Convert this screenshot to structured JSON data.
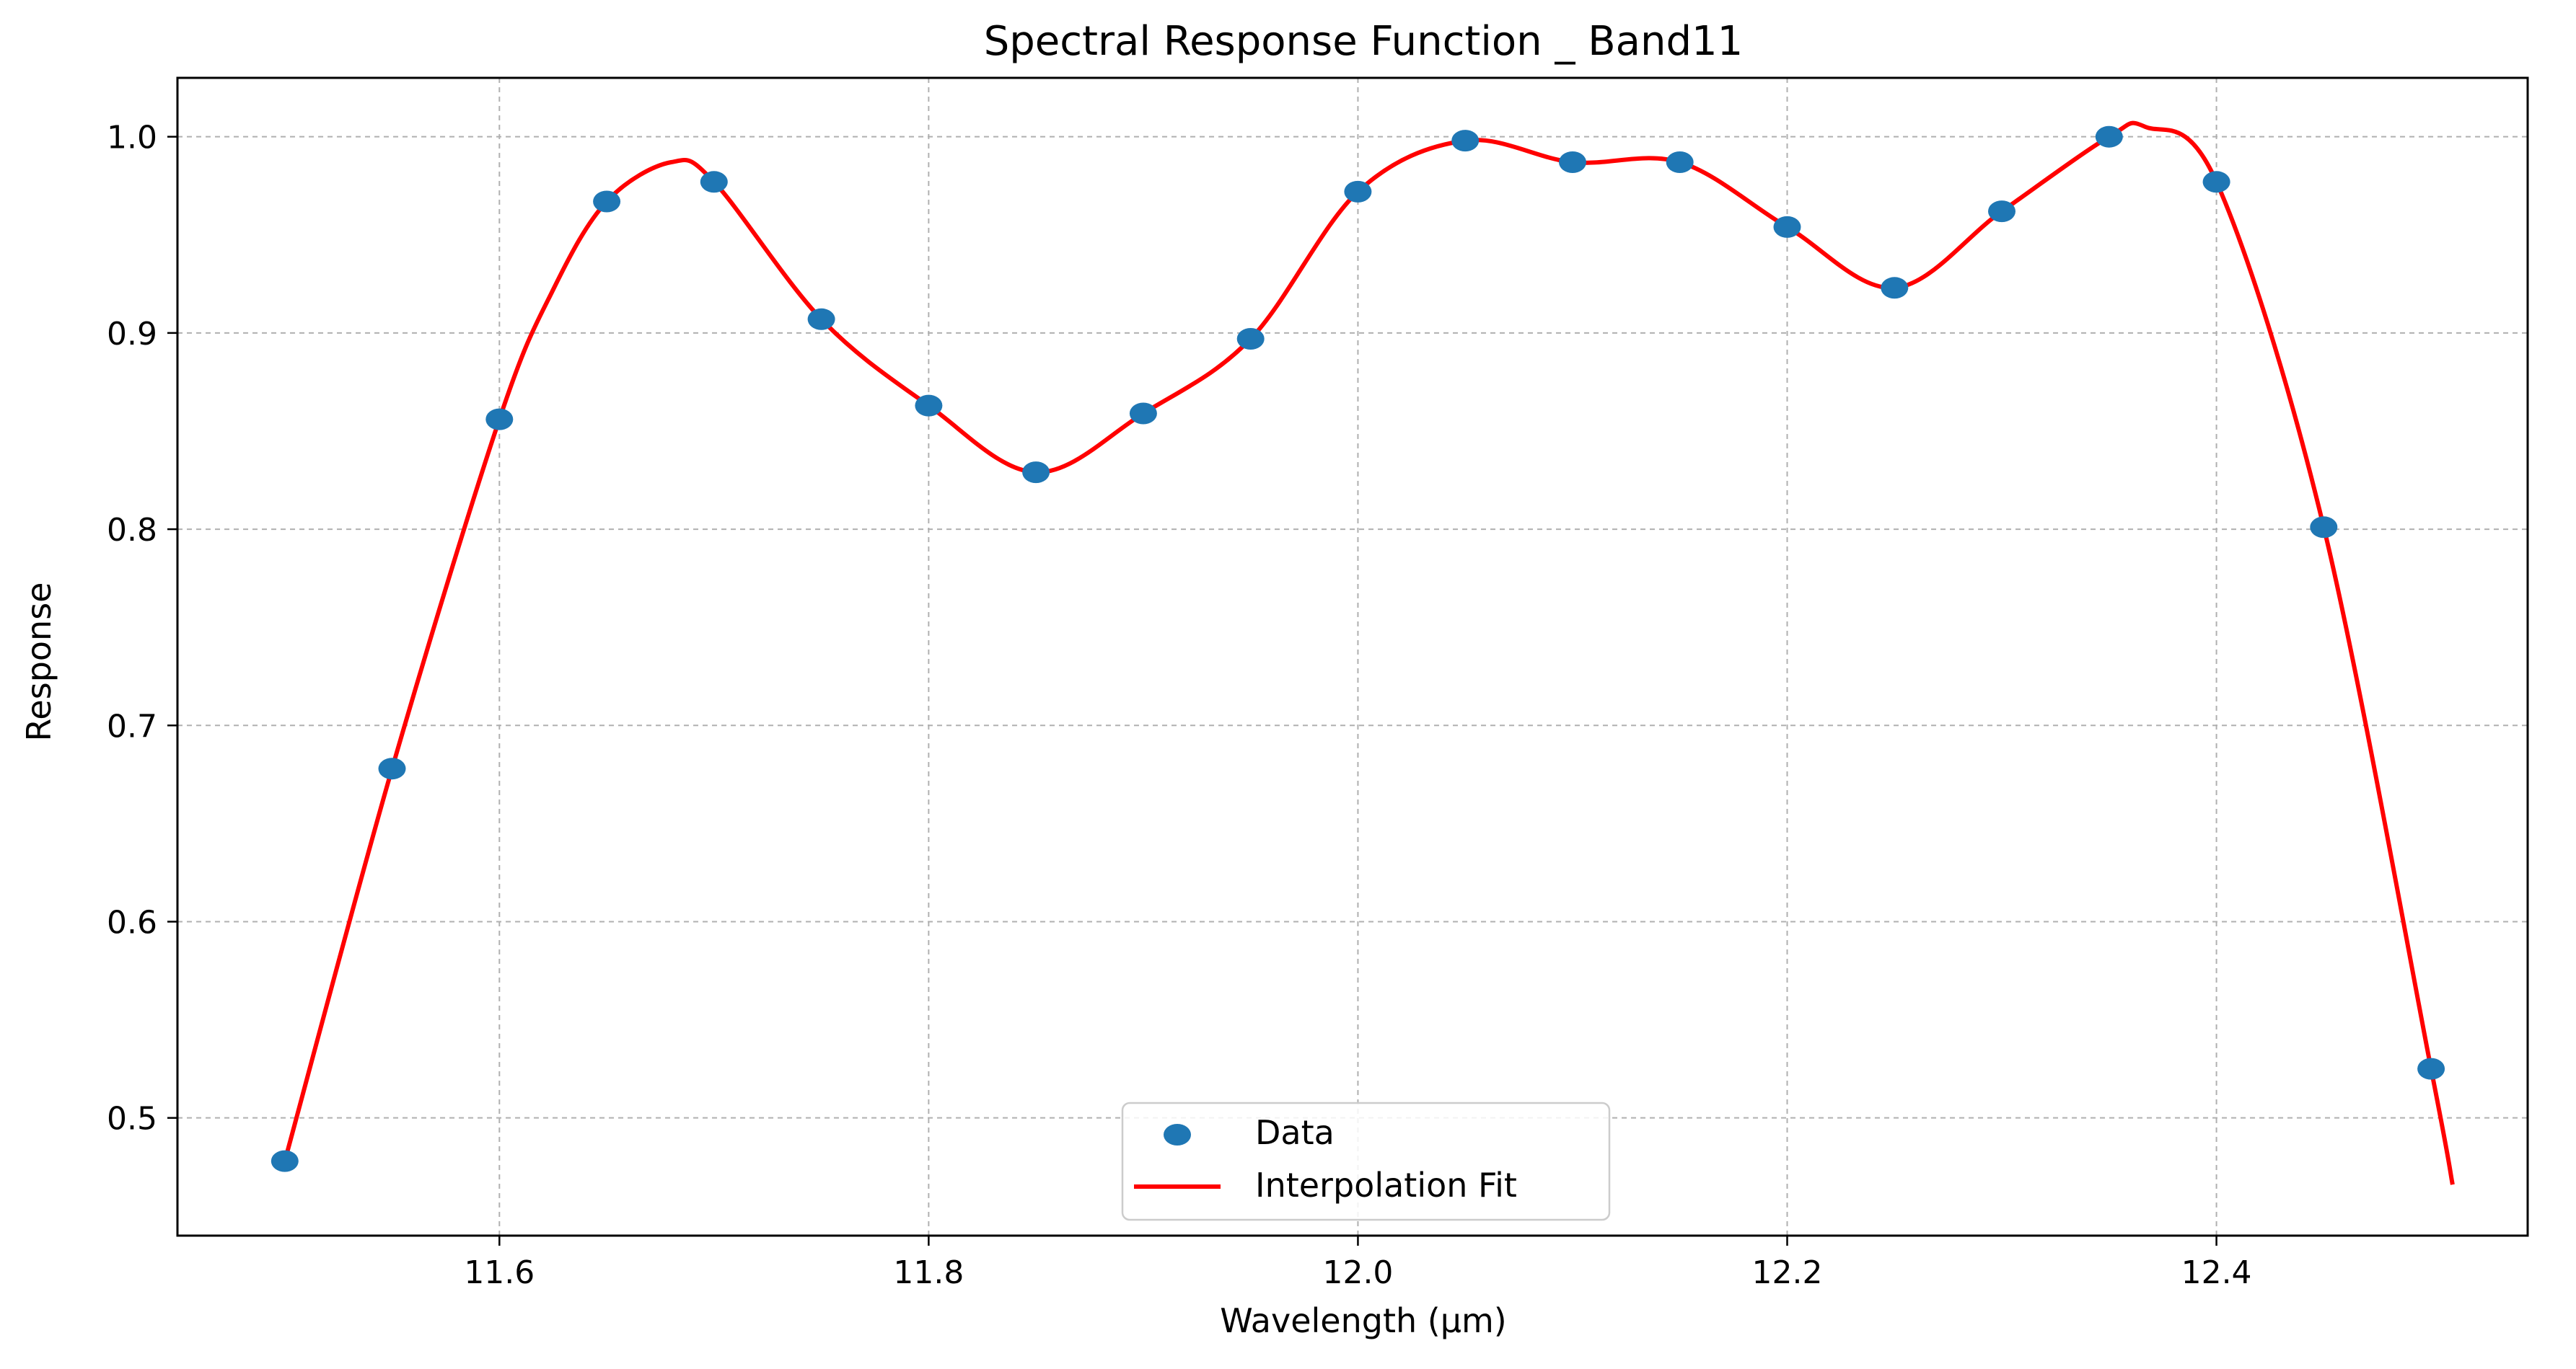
{
  "chart_data": {
    "type": "scatter",
    "title": "Spectral Response Function _ Band11",
    "xlabel": "Wavelength (µm)",
    "ylabel": "Response",
    "xlim": [
      11.45,
      12.545
    ],
    "ylim": [
      0.44,
      1.03
    ],
    "grid": true,
    "legend_position": "bottom-center",
    "x_ticks": [
      11.6,
      11.8,
      12.0,
      12.2,
      12.4
    ],
    "x_tick_labels": [
      "11.6",
      "11.8",
      "12.0",
      "12.2",
      "12.4"
    ],
    "y_ticks": [
      0.5,
      0.6,
      0.7,
      0.8,
      0.9,
      1.0
    ],
    "y_tick_labels": [
      "0.5",
      "0.6",
      "0.7",
      "0.8",
      "0.9",
      "1.0"
    ],
    "series": [
      {
        "name": "Data",
        "kind": "scatter",
        "color": "#1f77b4",
        "x": [
          11.5,
          11.55,
          11.6,
          11.65,
          11.7,
          11.75,
          11.8,
          11.85,
          11.9,
          11.95,
          12.0,
          12.05,
          12.1,
          12.15,
          12.2,
          12.25,
          12.3,
          12.35,
          12.4,
          12.45,
          12.5
        ],
        "y": [
          0.478,
          0.678,
          0.856,
          0.967,
          0.977,
          0.907,
          0.863,
          0.829,
          0.859,
          0.897,
          0.972,
          0.998,
          0.987,
          0.987,
          0.954,
          0.923,
          0.962,
          1.0,
          0.977,
          0.801,
          0.525
        ]
      },
      {
        "name": "Interpolation Fit",
        "kind": "line",
        "color": "#ff0000",
        "x": [
          11.5,
          11.55,
          11.6,
          11.625,
          11.65,
          11.68,
          11.7,
          11.75,
          11.8,
          11.85,
          11.9,
          11.95,
          12.0,
          12.05,
          12.1,
          12.15,
          12.2,
          12.25,
          12.3,
          12.35,
          12.367,
          12.4,
          12.45,
          12.5,
          12.51
        ],
        "y": [
          0.478,
          0.678,
          0.856,
          0.922,
          0.967,
          0.987,
          0.977,
          0.907,
          0.863,
          0.829,
          0.859,
          0.897,
          0.972,
          0.998,
          0.987,
          0.987,
          0.954,
          0.923,
          0.962,
          1.0,
          1.005,
          0.977,
          0.801,
          0.525,
          0.466
        ]
      }
    ]
  }
}
